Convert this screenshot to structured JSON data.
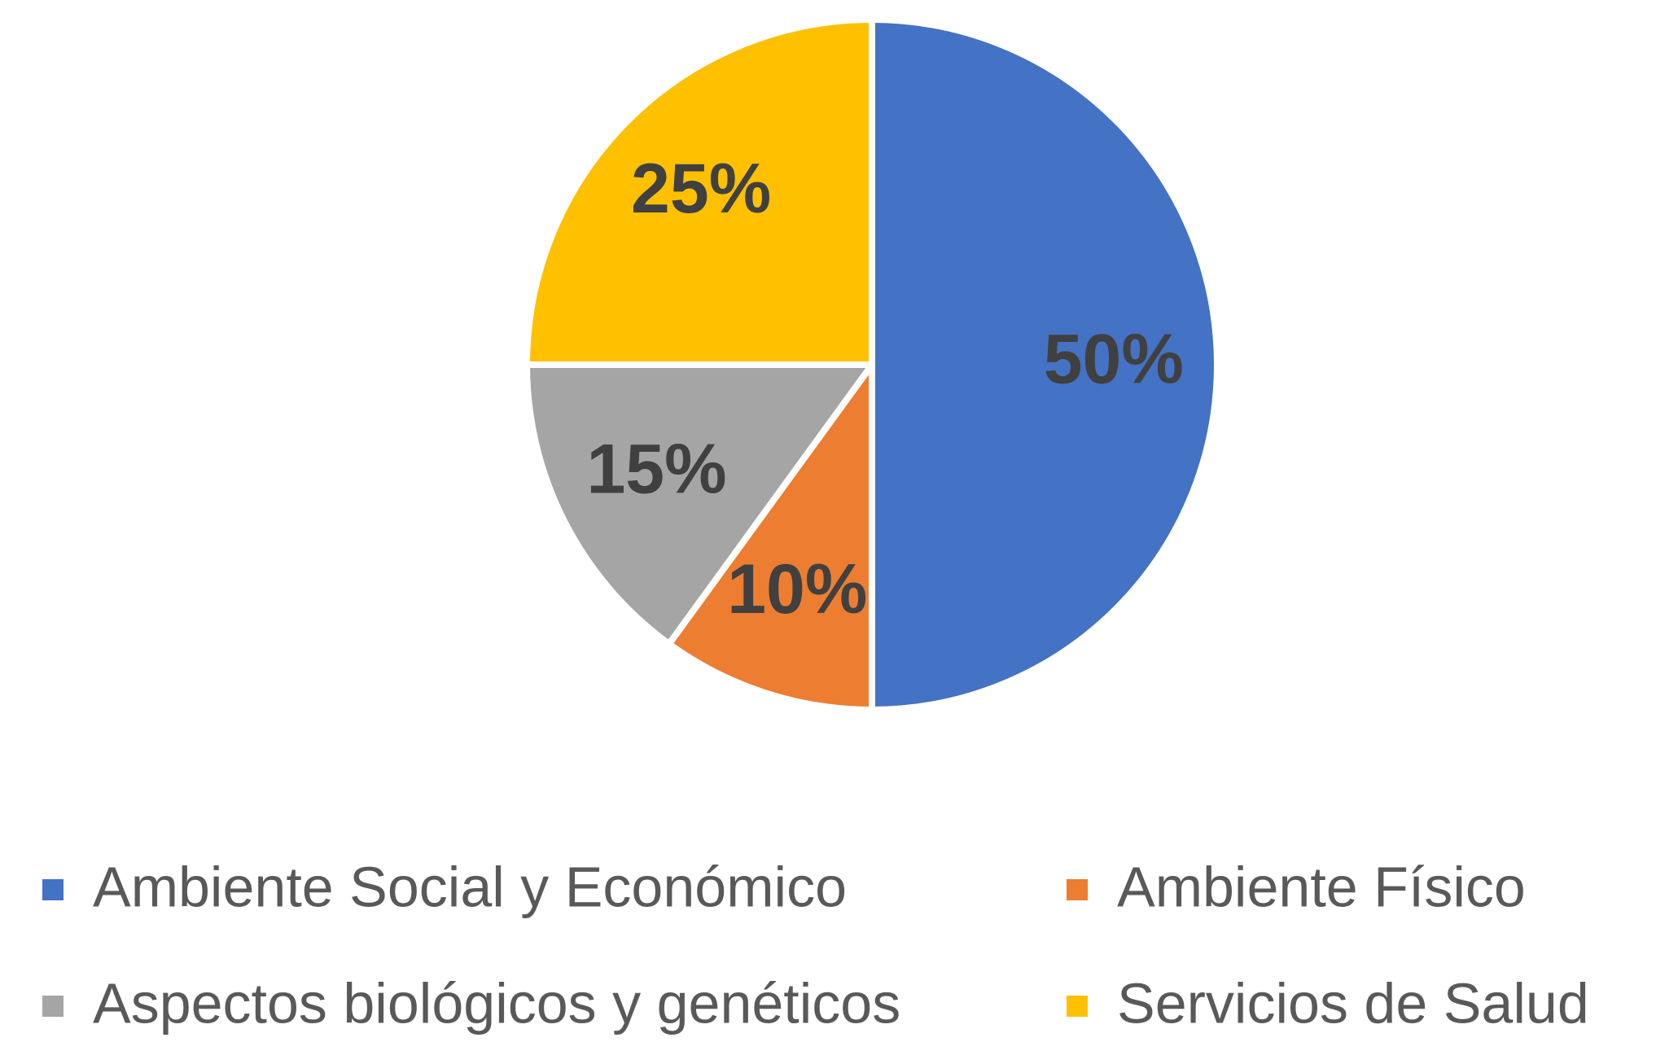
{
  "chart_data": {
    "type": "pie",
    "categories": [
      "Ambiente Social y Económico",
      "Ambiente Físico",
      "Aspectos biológicos y genéticos",
      "Servicios de Salud"
    ],
    "values": [
      50,
      10,
      15,
      25
    ],
    "value_labels": [
      "50%",
      "10%",
      "15%",
      "25%"
    ],
    "colors": [
      "#4472c4",
      "#ed7d31",
      "#a5a5a5",
      "#ffc000"
    ],
    "legend": "bottom"
  }
}
